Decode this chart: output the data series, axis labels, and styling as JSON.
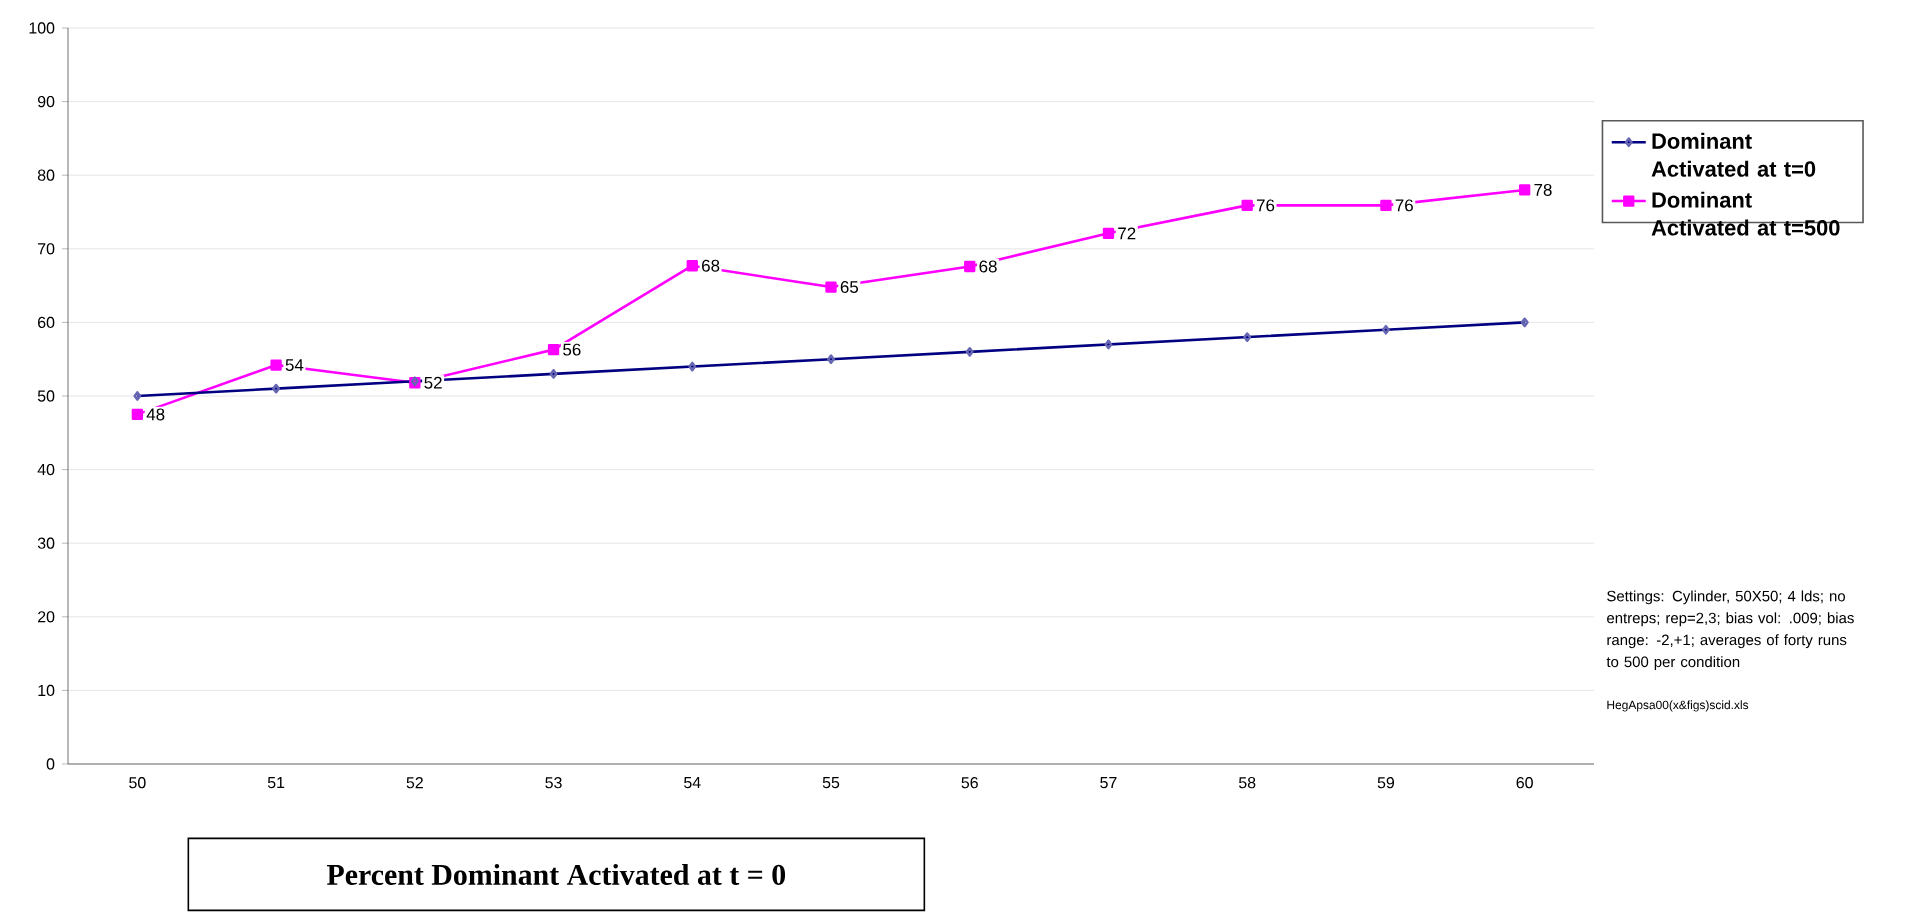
{
  "chart_data": {
    "type": "line",
    "xlabel": "Percent Dominant Activated at t = 0",
    "categories": [
      "50",
      "51",
      "52",
      "53",
      "54",
      "55",
      "56",
      "57",
      "58",
      "59",
      "60"
    ],
    "series": [
      {
        "name": "Dominant Activated at t=0",
        "color": "#000080",
        "marker": "diamond",
        "values": [
          50,
          51,
          52,
          53,
          54,
          55,
          56,
          57,
          58,
          59,
          60
        ]
      },
      {
        "name": "Dominant Activated at t=500",
        "color": "#ff00ff",
        "marker": "square",
        "values": [
          47.5,
          54.2,
          51.8,
          56.3,
          67.7,
          64.8,
          67.6,
          72.1,
          75.9,
          75.9,
          78.0
        ],
        "value_labels": [
          "48",
          "54",
          "52",
          "56",
          "68",
          "65",
          "68",
          "72",
          "76",
          "76",
          "78"
        ]
      }
    ],
    "ylim": [
      0,
      100
    ],
    "yticks": [
      0,
      10,
      20,
      30,
      40,
      50,
      60,
      70,
      80,
      90,
      100
    ],
    "grid": "y",
    "legend": "right",
    "annotations": [
      "Settings:  Cylinder, 50X50; 4 lds; no entreps; rep=2,3; bias vol: .009; bias range: -2,+1; averages of forty runs to 500 per condition",
      "HegApsa00(x&figs)scid.xls"
    ]
  }
}
